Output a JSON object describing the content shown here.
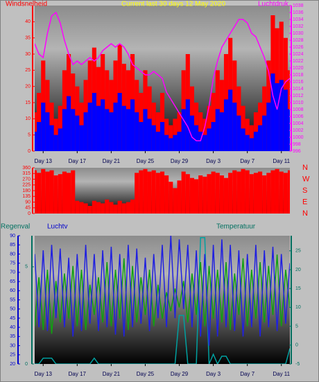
{
  "chart_data": [
    {
      "type": "combo",
      "title": "Current last 30 days 12 May 2020",
      "ylabel": "Windsnelheid",
      "y2label": "Luchtdruk",
      "title_color": "#ffff00",
      "axis_colors": {
        "y": "#ff0000",
        "y2": "#ff00ff"
      },
      "x": [
        0,
        0.5,
        1,
        1.5,
        2,
        2.5,
        3,
        3.5,
        4,
        4.5,
        5,
        5.5,
        6,
        6.5,
        7,
        7.5,
        8,
        8.5,
        9,
        9.5,
        10,
        10.5,
        11,
        11.5,
        12,
        12.5,
        13,
        13.5,
        14,
        14.5,
        15,
        15.5,
        16,
        16.5,
        17,
        17.5,
        18,
        18.5,
        19,
        19.5,
        20,
        20.5,
        21,
        21.5,
        22,
        22.5,
        23,
        23.5,
        24,
        24.5,
        25,
        25.5,
        26,
        26.5,
        27,
        27.5,
        28,
        28.5,
        29,
        29.5,
        30
      ],
      "xlim": [
        0,
        30
      ],
      "xticks": [
        {
          "value": 1,
          "label": "Day 13"
        },
        {
          "value": 5,
          "label": "Day 17"
        },
        {
          "value": 9,
          "label": "Day 21"
        },
        {
          "value": 13,
          "label": "Day 25"
        },
        {
          "value": 17,
          "label": "Day 29"
        },
        {
          "value": 21,
          "label": "Day 3"
        },
        {
          "value": 25,
          "label": "Day 7"
        },
        {
          "value": 29,
          "label": "Day 11"
        }
      ],
      "ylim": [
        0,
        45
      ],
      "yticks": [
        0,
        5,
        10,
        15,
        20,
        25,
        30,
        35,
        40
      ],
      "y2lim": [
        996,
        1038
      ],
      "y2ticks": [
        996,
        998,
        1000,
        1002,
        1004,
        1006,
        1008,
        1010,
        1012,
        1014,
        1016,
        1018,
        1020,
        1022,
        1024,
        1026,
        1028,
        1030,
        1032,
        1034,
        1036,
        1038
      ],
      "series": [
        {
          "type": "bar",
          "color": "#ff0000",
          "values": [
            12,
            18,
            28,
            22,
            15,
            10,
            14,
            25,
            30,
            24,
            20,
            15,
            22,
            28,
            32,
            26,
            30,
            25,
            22,
            28,
            33,
            27,
            25,
            30,
            22,
            18,
            25,
            20,
            15,
            12,
            18,
            10,
            8,
            10,
            12,
            25,
            30,
            20,
            15,
            12,
            10,
            14,
            18,
            25,
            22,
            30,
            35,
            28,
            20,
            14,
            10,
            8,
            12,
            15,
            20,
            28,
            42,
            38,
            40,
            35,
            25
          ]
        },
        {
          "type": "bar",
          "color": "#0000ff",
          "values": [
            6,
            9,
            15,
            12,
            8,
            5,
            7,
            13,
            17,
            13,
            11,
            8,
            12,
            15,
            18,
            14,
            16,
            13,
            12,
            15,
            18,
            14,
            13,
            16,
            12,
            9,
            13,
            10,
            8,
            6,
            9,
            5,
            4,
            5,
            6,
            13,
            16,
            11,
            8,
            6,
            5,
            7,
            9,
            13,
            12,
            16,
            19,
            15,
            11,
            7,
            5,
            4,
            6,
            8,
            11,
            15,
            24,
            21,
            22,
            19,
            13
          ]
        },
        {
          "type": "line",
          "axis": "y2",
          "color": "#ff00ff",
          "values": [
            1027,
            1024,
            1023,
            1030,
            1035,
            1036,
            1033,
            1028,
            1024,
            1021,
            1022,
            1021,
            1022,
            1023,
            1022,
            1023,
            1025,
            1026,
            1027,
            1026,
            1027,
            1026,
            1024,
            1021,
            1020,
            1019,
            1018,
            1018,
            1019,
            1018,
            1017,
            1013,
            1011,
            1009,
            1007,
            1005,
            1003,
            1000,
            999,
            999,
            1003,
            1009,
            1017,
            1022,
            1026,
            1028,
            1030,
            1032,
            1034,
            1034,
            1033,
            1030,
            1029,
            1026,
            1023,
            1019,
            1012,
            1008,
            1014,
            1016,
            1017
          ]
        }
      ]
    },
    {
      "type": "bar",
      "axis_colors": {
        "y": "#ff0000",
        "y2": "#ff0000"
      },
      "x": [
        0,
        0.5,
        1,
        1.5,
        2,
        2.5,
        3,
        3.5,
        4,
        4.5,
        5,
        5.5,
        6,
        6.5,
        7,
        7.5,
        8,
        8.5,
        9,
        9.5,
        10,
        10.5,
        11,
        11.5,
        12,
        12.5,
        13,
        13.5,
        14,
        14.5,
        15,
        15.5,
        16,
        16.5,
        17,
        17.5,
        18,
        18.5,
        19,
        19.5,
        20,
        20.5,
        21,
        21.5,
        22,
        22.5,
        23,
        23.5,
        24,
        24.5,
        25,
        25.5,
        26,
        26.5,
        27,
        27.5,
        28,
        28.5,
        29,
        29.5,
        30
      ],
      "xlim": [
        0,
        30
      ],
      "ylim": [
        0,
        360
      ],
      "yticks": [
        0,
        45,
        90,
        135,
        180,
        225,
        270,
        315,
        360
      ],
      "y2lim": [
        0,
        360
      ],
      "y2ticks": [
        {
          "value": 360,
          "label": "N"
        },
        {
          "value": 270,
          "label": "W"
        },
        {
          "value": 180,
          "label": "S"
        },
        {
          "value": 90,
          "label": "E"
        },
        {
          "value": 0,
          "label": "N"
        }
      ],
      "series": [
        {
          "type": "bar",
          "color": "#ff0000",
          "values": [
            340,
            320,
            350,
            330,
            340,
            300,
            310,
            330,
            320,
            340,
            100,
            90,
            80,
            60,
            100,
            90,
            80,
            110,
            90,
            70,
            100,
            80,
            90,
            110,
            320,
            340,
            350,
            330,
            340,
            320,
            330,
            300,
            250,
            200,
            260,
            330,
            310,
            280,
            270,
            300,
            290,
            310,
            330,
            320,
            300,
            280,
            320,
            340,
            330,
            350,
            340,
            310,
            320,
            330,
            300,
            320,
            340,
            350,
            330,
            320,
            340
          ]
        }
      ]
    },
    {
      "type": "line",
      "ylabel": "Luchtv",
      "y2label": "Temperatuur",
      "y3label": "Regenval",
      "axis_colors": {
        "y": "#0000cc",
        "y2": "#007060",
        "y3": "#007060"
      },
      "x": [
        0,
        0.5,
        1,
        1.5,
        2,
        2.5,
        3,
        3.5,
        4,
        4.5,
        5,
        5.5,
        6,
        6.5,
        7,
        7.5,
        8,
        8.5,
        9,
        9.5,
        10,
        10.5,
        11,
        11.5,
        12,
        12.5,
        13,
        13.5,
        14,
        14.5,
        15,
        15.5,
        16,
        16.5,
        17,
        17.5,
        18,
        18.5,
        19,
        19.5,
        20,
        20.5,
        21,
        21.5,
        22,
        22.5,
        23,
        23.5,
        24,
        24.5,
        25,
        25.5,
        26,
        26.5,
        27,
        27.5,
        28,
        28.5,
        29,
        29.5,
        30
      ],
      "xlim": [
        0,
        30
      ],
      "xticks": [
        {
          "value": 1,
          "label": "Day 13"
        },
        {
          "value": 5,
          "label": "Day 17"
        },
        {
          "value": 9,
          "label": "Day 21"
        },
        {
          "value": 13,
          "label": "Day 25"
        },
        {
          "value": 17,
          "label": "Day 29"
        },
        {
          "value": 21,
          "label": "Day 3"
        },
        {
          "value": 25,
          "label": "Day 7"
        },
        {
          "value": 29,
          "label": "Day 11"
        }
      ],
      "ylim": [
        20,
        90
      ],
      "yticks": [
        20,
        25,
        30,
        35,
        40,
        45,
        50,
        55,
        60,
        65,
        70,
        75,
        80,
        85,
        90
      ],
      "y2lim": [
        -5,
        29
      ],
      "y2ticks": [
        -5,
        0,
        5,
        10,
        15,
        20,
        25
      ],
      "y3lim": [
        0,
        6.6
      ],
      "y3ticks": [
        0,
        5
      ],
      "series": [
        {
          "type": "line",
          "axis": "y3",
          "color": "#00a0a0",
          "values": [
            0,
            0,
            0.3,
            0.3,
            0.3,
            0,
            0,
            0,
            0,
            0,
            0,
            0,
            0,
            0,
            0.3,
            0,
            0,
            0,
            0,
            0,
            0,
            0,
            0,
            0,
            0,
            0,
            0,
            0,
            0,
            0,
            0,
            0,
            0,
            0,
            2.5,
            2.5,
            0,
            0,
            0,
            6.5,
            6.5,
            0,
            0.5,
            0,
            0.4,
            0.4,
            0,
            0,
            0,
            0,
            0,
            0,
            0,
            0,
            0,
            0,
            0,
            0,
            0,
            0,
            0.8
          ]
        },
        {
          "type": "line",
          "axis": "y2",
          "color": "#10a010",
          "values": [
            5,
            18,
            4,
            20,
            3,
            17,
            6,
            19,
            7,
            21,
            5,
            20,
            4,
            16,
            8,
            18,
            6,
            22,
            5,
            20,
            7,
            23,
            4,
            21,
            6,
            18,
            8,
            20,
            5,
            16,
            7,
            14,
            9,
            15,
            10,
            17,
            6,
            19,
            8,
            22,
            5,
            21,
            7,
            20,
            6,
            22,
            4,
            19,
            8,
            23,
            5,
            20,
            7,
            22,
            6,
            21,
            8,
            24,
            5,
            20,
            10
          ]
        },
        {
          "type": "line",
          "color": "#2020e0",
          "values": [
            80,
            40,
            82,
            38,
            85,
            45,
            83,
            40,
            78,
            35,
            80,
            38,
            85,
            42,
            80,
            38,
            82,
            40,
            84,
            36,
            80,
            35,
            85,
            40,
            83,
            42,
            78,
            38,
            80,
            45,
            85,
            40,
            90,
            45,
            88,
            50,
            85,
            40,
            82,
            35,
            80,
            30,
            85,
            35,
            88,
            40,
            85,
            38,
            82,
            35,
            80,
            40,
            85,
            35,
            82,
            40,
            84,
            38,
            80,
            42,
            75
          ]
        }
      ]
    }
  ]
}
